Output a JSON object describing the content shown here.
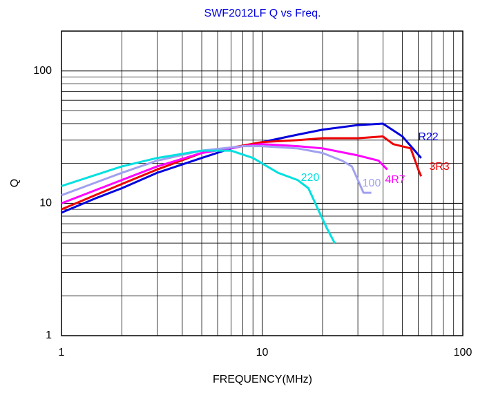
{
  "chart_data": {
    "type": "line",
    "title": "SWF2012LF Q vs Freq.",
    "xlabel": "FREQUENCY(MHz)",
    "ylabel": "Q",
    "xscale": "log",
    "yscale": "log",
    "grid": true,
    "minor_grid": true,
    "xlim": [
      1,
      100
    ],
    "ylim": [
      1,
      200
    ],
    "xticks": [
      1,
      10,
      100
    ],
    "yticks": [
      1,
      10,
      100
    ],
    "series": [
      {
        "name": "R22",
        "color": "#0000dd",
        "x": [
          1,
          1.5,
          2,
          3,
          5,
          7,
          10,
          15,
          20,
          30,
          40,
          50,
          62
        ],
        "values": [
          8.5,
          11,
          13,
          17,
          22,
          26,
          29,
          33,
          36,
          39,
          40,
          32,
          22
        ]
      },
      {
        "name": "3R3",
        "color": "#ee0000",
        "x": [
          1,
          2,
          3,
          5,
          10,
          15,
          20,
          30,
          40,
          45,
          55,
          60,
          62
        ],
        "values": [
          9,
          14,
          18,
          24,
          29,
          30,
          31,
          31,
          32,
          28,
          26,
          18,
          16
        ]
      },
      {
        "name": "4R7",
        "color": "#ff00ff",
        "x": [
          1,
          2,
          3,
          5,
          8,
          10,
          15,
          20,
          30,
          38,
          42
        ],
        "values": [
          10,
          15,
          19,
          24,
          27,
          28,
          27,
          26,
          23,
          21,
          18
        ]
      },
      {
        "name": "100",
        "color": "#a0a0f0",
        "x": [
          1,
          2,
          3,
          5,
          8,
          10,
          15,
          20,
          25,
          28,
          30,
          32,
          35
        ],
        "values": [
          11.5,
          17,
          21,
          25,
          27,
          27,
          26,
          24,
          21,
          19,
          15,
          12,
          12
        ]
      },
      {
        "name": "220",
        "color": "#00e0e0",
        "x": [
          1,
          2,
          3,
          5,
          7,
          9,
          12,
          15,
          17,
          19,
          21,
          23
        ],
        "values": [
          13.5,
          19,
          22,
          25,
          25,
          22,
          17,
          15,
          13,
          9,
          6.5,
          5
        ]
      }
    ]
  }
}
